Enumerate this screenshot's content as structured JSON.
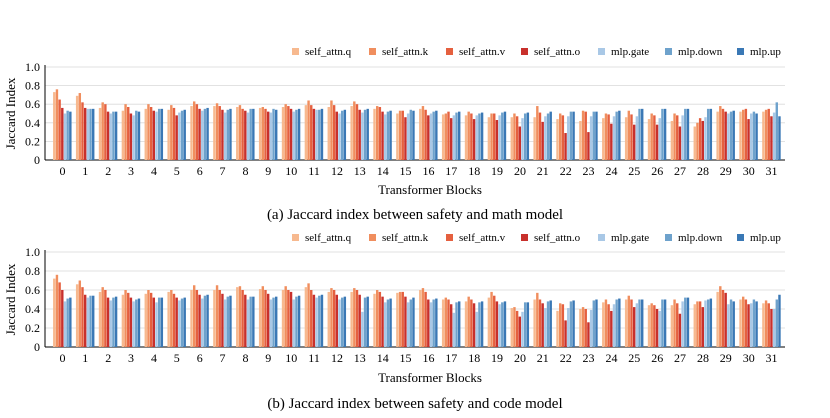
{
  "chart_data": [
    {
      "type": "bar",
      "caption": "(a) Jaccard index between safety and math model",
      "xlabel": "Transformer Blocks",
      "ylabel": "Jaccard Index",
      "ylim": [
        0,
        1.0
      ],
      "yticks": [
        "0",
        "0.2",
        "0.4",
        "0.6",
        "0.8",
        "1.0"
      ],
      "grid": "horizontal",
      "legend_position": "top-right",
      "categories": [
        "0",
        "1",
        "2",
        "3",
        "4",
        "5",
        "6",
        "7",
        "8",
        "9",
        "10",
        "11",
        "12",
        "13",
        "14",
        "15",
        "16",
        "17",
        "18",
        "19",
        "20",
        "21",
        "22",
        "23",
        "24",
        "25",
        "26",
        "27",
        "28",
        "29",
        "30",
        "31"
      ],
      "series": [
        {
          "name": "self_attn.q",
          "color": "#f7b98f",
          "values": [
            0.73,
            0.69,
            0.56,
            0.53,
            0.55,
            0.54,
            0.58,
            0.58,
            0.57,
            0.56,
            0.57,
            0.59,
            0.57,
            0.58,
            0.55,
            0.5,
            0.55,
            0.49,
            0.48,
            0.46,
            0.46,
            0.46,
            0.44,
            0.42,
            0.45,
            0.46,
            0.44,
            0.42,
            0.36,
            0.52,
            0.52,
            0.52
          ]
        },
        {
          "name": "self_attn.k",
          "color": "#f08e5e",
          "values": [
            0.76,
            0.72,
            0.62,
            0.6,
            0.6,
            0.59,
            0.63,
            0.61,
            0.59,
            0.57,
            0.6,
            0.64,
            0.64,
            0.63,
            0.58,
            0.53,
            0.58,
            0.5,
            0.52,
            0.5,
            0.5,
            0.58,
            0.5,
            0.53,
            0.5,
            0.53,
            0.5,
            0.5,
            0.4,
            0.58,
            0.54,
            0.54
          ]
        },
        {
          "name": "self_attn.v",
          "color": "#e5603f",
          "values": [
            0.65,
            0.62,
            0.6,
            0.57,
            0.57,
            0.56,
            0.6,
            0.58,
            0.55,
            0.55,
            0.58,
            0.59,
            0.59,
            0.6,
            0.57,
            0.53,
            0.54,
            0.52,
            0.5,
            0.5,
            0.47,
            0.51,
            0.48,
            0.52,
            0.49,
            0.49,
            0.48,
            0.48,
            0.45,
            0.55,
            0.55,
            0.55
          ]
        },
        {
          "name": "self_attn.o",
          "color": "#c8302c",
          "values": [
            0.56,
            0.56,
            0.52,
            0.5,
            0.53,
            0.48,
            0.55,
            0.54,
            0.53,
            0.52,
            0.55,
            0.55,
            0.52,
            0.54,
            0.52,
            0.46,
            0.48,
            0.45,
            0.44,
            0.43,
            0.36,
            0.41,
            0.29,
            0.3,
            0.39,
            0.38,
            0.38,
            0.36,
            0.42,
            0.52,
            0.44,
            0.47
          ]
        },
        {
          "name": "mlp.gate",
          "color": "#a9c8e6",
          "values": [
            0.5,
            0.55,
            0.5,
            0.48,
            0.52,
            0.51,
            0.53,
            0.51,
            0.51,
            0.51,
            0.52,
            0.54,
            0.5,
            0.51,
            0.49,
            0.5,
            0.5,
            0.48,
            0.48,
            0.48,
            0.45,
            0.47,
            0.47,
            0.47,
            0.47,
            0.47,
            0.45,
            0.48,
            0.46,
            0.5,
            0.5,
            0.51
          ]
        },
        {
          "name": "mlp.down",
          "color": "#6ea2cc",
          "values": [
            0.53,
            0.55,
            0.52,
            0.53,
            0.55,
            0.53,
            0.55,
            0.54,
            0.55,
            0.55,
            0.54,
            0.54,
            0.53,
            0.54,
            0.52,
            0.54,
            0.52,
            0.51,
            0.5,
            0.51,
            0.5,
            0.5,
            0.52,
            0.52,
            0.52,
            0.55,
            0.55,
            0.55,
            0.55,
            0.52,
            0.52,
            0.62
          ]
        },
        {
          "name": "mlp.up",
          "color": "#3a78b5",
          "values": [
            0.52,
            0.55,
            0.52,
            0.52,
            0.55,
            0.54,
            0.56,
            0.55,
            0.55,
            0.54,
            0.55,
            0.55,
            0.54,
            0.55,
            0.53,
            0.53,
            0.53,
            0.52,
            0.51,
            0.52,
            0.51,
            0.52,
            0.52,
            0.52,
            0.53,
            0.55,
            0.55,
            0.55,
            0.55,
            0.53,
            0.5,
            0.47
          ]
        }
      ]
    },
    {
      "type": "bar",
      "caption": "(b) Jaccard index between safety and code model",
      "xlabel": "Transformer Blocks",
      "ylabel": "Jaccard Index",
      "ylim": [
        0,
        1.0
      ],
      "yticks": [
        "0",
        "0.2",
        "0.4",
        "0.6",
        "0.8",
        "1.0"
      ],
      "grid": "horizontal",
      "legend_position": "top-right",
      "categories": [
        "0",
        "1",
        "2",
        "3",
        "4",
        "5",
        "6",
        "7",
        "8",
        "9",
        "10",
        "11",
        "12",
        "13",
        "14",
        "15",
        "16",
        "17",
        "18",
        "19",
        "20",
        "21",
        "22",
        "23",
        "24",
        "25",
        "26",
        "27",
        "28",
        "29",
        "30",
        "31"
      ],
      "series": [
        {
          "name": "self_attn.q",
          "color": "#f7b98f",
          "values": [
            0.72,
            0.66,
            0.58,
            0.55,
            0.56,
            0.58,
            0.6,
            0.6,
            0.63,
            0.61,
            0.6,
            0.63,
            0.58,
            0.58,
            0.56,
            0.57,
            0.6,
            0.5,
            0.48,
            0.52,
            0.41,
            0.5,
            0.38,
            0.4,
            0.47,
            0.5,
            0.44,
            0.44,
            0.45,
            0.58,
            0.5,
            0.46
          ]
        },
        {
          "name": "self_attn.k",
          "color": "#f08e5e",
          "values": [
            0.76,
            0.7,
            0.63,
            0.6,
            0.6,
            0.6,
            0.65,
            0.65,
            0.64,
            0.64,
            0.64,
            0.67,
            0.62,
            0.62,
            0.6,
            0.58,
            0.62,
            0.52,
            0.53,
            0.58,
            0.42,
            0.57,
            0.46,
            0.42,
            0.5,
            0.54,
            0.46,
            0.5,
            0.48,
            0.64,
            0.53,
            0.49
          ]
        },
        {
          "name": "self_attn.v",
          "color": "#e5603f",
          "values": [
            0.68,
            0.63,
            0.6,
            0.57,
            0.57,
            0.56,
            0.6,
            0.6,
            0.6,
            0.6,
            0.6,
            0.6,
            0.6,
            0.6,
            0.58,
            0.58,
            0.58,
            0.5,
            0.5,
            0.54,
            0.38,
            0.5,
            0.45,
            0.4,
            0.45,
            0.5,
            0.44,
            0.46,
            0.48,
            0.6,
            0.5,
            0.46
          ]
        },
        {
          "name": "self_attn.o",
          "color": "#c8302c",
          "values": [
            0.6,
            0.55,
            0.52,
            0.52,
            0.52,
            0.52,
            0.55,
            0.56,
            0.55,
            0.56,
            0.58,
            0.55,
            0.55,
            0.55,
            0.53,
            0.53,
            0.5,
            0.45,
            0.46,
            0.48,
            0.32,
            0.46,
            0.28,
            0.26,
            0.38,
            0.42,
            0.4,
            0.35,
            0.42,
            0.57,
            0.45,
            0.4
          ]
        },
        {
          "name": "mlp.gate",
          "color": "#a9c8e6",
          "values": [
            0.48,
            0.52,
            0.49,
            0.48,
            0.47,
            0.49,
            0.51,
            0.5,
            0.5,
            0.5,
            0.5,
            0.52,
            0.5,
            0.37,
            0.47,
            0.47,
            0.47,
            0.36,
            0.37,
            0.45,
            0.37,
            0.41,
            0.41,
            0.39,
            0.45,
            0.46,
            0.38,
            0.48,
            0.49,
            0.45,
            0.46,
            0.4
          ]
        },
        {
          "name": "mlp.down",
          "color": "#6ea2cc",
          "values": [
            0.51,
            0.54,
            0.52,
            0.5,
            0.52,
            0.51,
            0.54,
            0.53,
            0.53,
            0.52,
            0.53,
            0.54,
            0.52,
            0.52,
            0.5,
            0.5,
            0.5,
            0.47,
            0.47,
            0.47,
            0.47,
            0.48,
            0.48,
            0.49,
            0.5,
            0.5,
            0.5,
            0.52,
            0.5,
            0.5,
            0.5,
            0.5
          ]
        },
        {
          "name": "mlp.up",
          "color": "#3a78b5",
          "values": [
            0.52,
            0.54,
            0.53,
            0.51,
            0.52,
            0.52,
            0.55,
            0.54,
            0.53,
            0.53,
            0.54,
            0.55,
            0.53,
            0.53,
            0.51,
            0.52,
            0.51,
            0.48,
            0.48,
            0.48,
            0.47,
            0.49,
            0.49,
            0.5,
            0.51,
            0.5,
            0.5,
            0.52,
            0.51,
            0.48,
            0.48,
            0.55
          ]
        }
      ]
    }
  ]
}
